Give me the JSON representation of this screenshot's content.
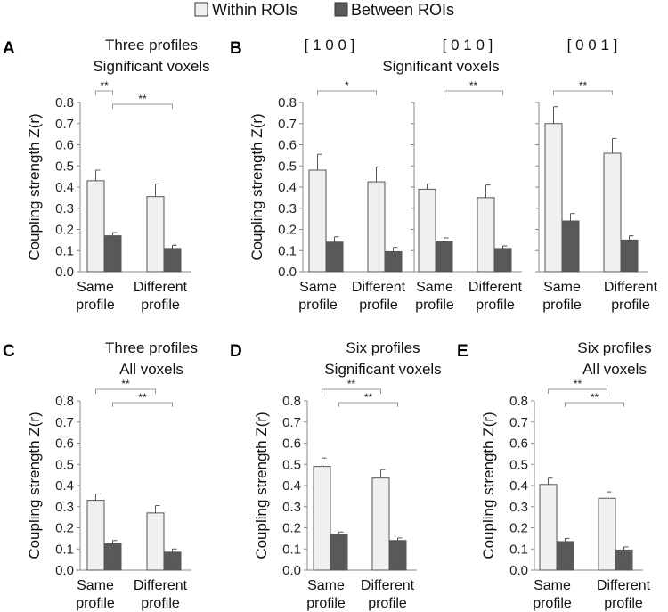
{
  "legend": {
    "within_label": "Within ROIs",
    "between_label": "Between ROIs",
    "within_color": "#f0f0f0",
    "between_color": "#595959"
  },
  "y_axis": {
    "label": "Coupling strength Z(r)",
    "ticks": [
      "0.0",
      "0.1",
      "0.2",
      "0.3",
      "0.4",
      "0.5",
      "0.6",
      "0.7",
      "0.8"
    ],
    "ylim": [
      0,
      0.8
    ]
  },
  "categories": [
    [
      "Same",
      "profile"
    ],
    [
      "Different",
      "profile"
    ]
  ],
  "chart_data": [
    {
      "panel": "A",
      "type": "bar",
      "title": [
        "Three profiles",
        "Significant voxels"
      ],
      "series": [
        {
          "name": "Within ROIs",
          "values": [
            0.43,
            0.355
          ],
          "errors": [
            0.05,
            0.06
          ]
        },
        {
          "name": "Between ROIs",
          "values": [
            0.17,
            0.11
          ],
          "errors": [
            0.015,
            0.015
          ]
        }
      ],
      "sig": [
        {
          "from": "within-0",
          "to": "between-0",
          "label": "**"
        },
        {
          "from": "between-0",
          "to": "between-1",
          "label": "**"
        }
      ]
    },
    {
      "panel": "B1",
      "type": "bar",
      "title": [
        "[ 1 0 0 ]"
      ],
      "series": [
        {
          "name": "Within ROIs",
          "values": [
            0.48,
            0.425
          ],
          "errors": [
            0.075,
            0.07
          ]
        },
        {
          "name": "Between ROIs",
          "values": [
            0.14,
            0.095
          ],
          "errors": [
            0.025,
            0.02
          ]
        }
      ],
      "sig": [
        {
          "from": "within-0",
          "to": "within-1",
          "label": "*"
        }
      ]
    },
    {
      "panel": "B2",
      "type": "bar",
      "title": [
        "[ 0 1 0 ]"
      ],
      "series": [
        {
          "name": "Within ROIs",
          "values": [
            0.39,
            0.35
          ],
          "errors": [
            0.025,
            0.06
          ]
        },
        {
          "name": "Between ROIs",
          "values": [
            0.145,
            0.11
          ],
          "errors": [
            0.015,
            0.012
          ]
        }
      ],
      "sig": [
        {
          "from": "between-0",
          "to": "between-1",
          "label": "**"
        }
      ]
    },
    {
      "panel": "B3",
      "type": "bar",
      "title": [
        "[ 0 0 1 ]"
      ],
      "series": [
        {
          "name": "Within ROIs",
          "values": [
            0.7,
            0.56
          ],
          "errors": [
            0.08,
            0.07
          ]
        },
        {
          "name": "Between ROIs",
          "values": [
            0.24,
            0.15
          ],
          "errors": [
            0.035,
            0.02
          ]
        }
      ],
      "sig": [
        {
          "from": "within-0",
          "to": "within-1",
          "label": "**"
        }
      ]
    },
    {
      "panel": "C",
      "type": "bar",
      "title": [
        "Three profiles",
        "All voxels"
      ],
      "series": [
        {
          "name": "Within ROIs",
          "values": [
            0.33,
            0.27
          ],
          "errors": [
            0.03,
            0.035
          ]
        },
        {
          "name": "Between ROIs",
          "values": [
            0.125,
            0.085
          ],
          "errors": [
            0.015,
            0.015
          ]
        }
      ],
      "sig": [
        {
          "from": "within-0",
          "to": "within-1",
          "label": "**"
        },
        {
          "from": "between-0",
          "to": "between-1",
          "label": "**"
        }
      ]
    },
    {
      "panel": "D",
      "type": "bar",
      "title": [
        "Six profiles",
        "Significant voxels"
      ],
      "series": [
        {
          "name": "Within ROIs",
          "values": [
            0.49,
            0.435
          ],
          "errors": [
            0.04,
            0.04
          ]
        },
        {
          "name": "Between ROIs",
          "values": [
            0.17,
            0.14
          ],
          "errors": [
            0.01,
            0.012
          ]
        }
      ],
      "sig": [
        {
          "from": "within-0",
          "to": "within-1",
          "label": "**"
        },
        {
          "from": "between-0",
          "to": "between-1",
          "label": "**"
        }
      ]
    },
    {
      "panel": "E",
      "type": "bar",
      "title": [
        "Six profiles",
        "All voxels"
      ],
      "series": [
        {
          "name": "Within ROIs",
          "values": [
            0.405,
            0.34
          ],
          "errors": [
            0.03,
            0.03
          ]
        },
        {
          "name": "Between ROIs",
          "values": [
            0.135,
            0.095
          ],
          "errors": [
            0.015,
            0.015
          ]
        }
      ],
      "sig": [
        {
          "from": "within-0",
          "to": "within-1",
          "label": "**"
        },
        {
          "from": "between-0",
          "to": "between-1",
          "label": "**"
        }
      ]
    }
  ],
  "panel_letters": {
    "A": "A",
    "B": "B",
    "C": "C",
    "D": "D",
    "E": "E"
  },
  "b_subtitle": "Significant voxels"
}
